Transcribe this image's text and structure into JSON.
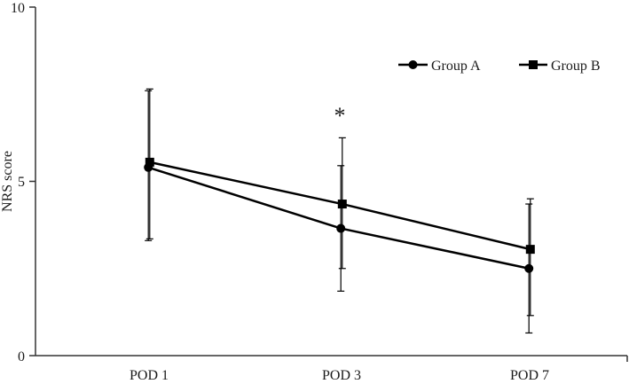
{
  "chart_data": {
    "type": "line",
    "categories": [
      "POD 1",
      "POD 3",
      "POD 7"
    ],
    "ylabel": "NRS score",
    "xlabel": "",
    "ylim": [
      0,
      10
    ],
    "yticks": [
      "0",
      "5",
      "10"
    ],
    "grid": false,
    "legend_position": "top-right",
    "series": [
      {
        "name": "Group A",
        "marker": "circle",
        "values": [
          5.4,
          3.65,
          2.5
        ],
        "err_low": [
          3.3,
          1.85,
          0.65
        ],
        "err_high": [
          7.6,
          5.45,
          4.35
        ]
      },
      {
        "name": "Group B",
        "marker": "square",
        "values": [
          5.55,
          4.35,
          3.05
        ],
        "err_low": [
          3.35,
          2.5,
          1.15
        ],
        "err_high": [
          7.65,
          6.25,
          4.5
        ]
      }
    ],
    "annotations": [
      {
        "text": "*",
        "category": "POD 3",
        "y": 7.0
      }
    ],
    "colors": {
      "line": "#000000",
      "axis": "#333333"
    }
  }
}
